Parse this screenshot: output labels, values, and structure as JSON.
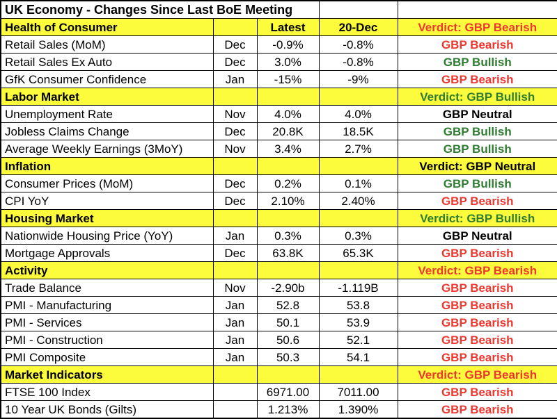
{
  "colors": {
    "section_bg": "#fcfc3d",
    "bearish": "#ed382f",
    "bullish": "#2e7d31",
    "neutral": "#000000"
  },
  "chart_data": {
    "type": "table",
    "title": "UK Economy - Changes Since Last BoE Meeting",
    "column_headers": {
      "latest": "Latest",
      "previous": "20-Dec"
    },
    "sections": [
      {
        "name": "Health of Consumer",
        "verdict": "Verdict: GBP Bearish",
        "tone": "bearish",
        "show_column_headers": true,
        "rows": [
          {
            "name": "Retail Sales (MoM)",
            "month": "Dec",
            "latest": "-0.9%",
            "previous": "-0.8%",
            "verdict": "GBP Bearish",
            "tone": "bearish"
          },
          {
            "name": "Retail Sales Ex Auto",
            "month": "Dec",
            "latest": "3.0%",
            "previous": "-0.8%",
            "verdict": "GBP Bullish",
            "tone": "bullish"
          },
          {
            "name": "GfK Consumer Confidence",
            "month": "Jan",
            "latest": "-15%",
            "previous": "-9%",
            "verdict": "GBP Bearish",
            "tone": "bearish"
          }
        ]
      },
      {
        "name": "Labor Market",
        "verdict": "Verdict: GBP Bullish",
        "tone": "bullish",
        "show_column_headers": false,
        "rows": [
          {
            "name": "Unemployment Rate",
            "month": "Nov",
            "latest": "4.0%",
            "previous": "4.0%",
            "verdict": "GBP Neutral",
            "tone": "neutral"
          },
          {
            "name": "Jobless Claims Change",
            "month": "Dec",
            "latest": "20.8K",
            "previous": "18.5K",
            "verdict": "GBP Bullish",
            "tone": "bullish"
          },
          {
            "name": "Average Weekly Earnings (3MoY)",
            "month": "Nov",
            "latest": "3.4%",
            "previous": "2.7%",
            "verdict": "GBP Bullish",
            "tone": "bullish"
          }
        ]
      },
      {
        "name": "Inflation",
        "verdict": "Verdict: GBP Neutral",
        "tone": "neutral",
        "show_column_headers": false,
        "rows": [
          {
            "name": "Consumer Prices (MoM)",
            "month": "Dec",
            "latest": "0.2%",
            "previous": "0.1%",
            "verdict": "GBP Bullish",
            "tone": "bullish"
          },
          {
            "name": "CPI YoY",
            "month": "Dec",
            "latest": "2.10%",
            "previous": "2.40%",
            "verdict": "GBP Bearish",
            "tone": "bearish"
          }
        ]
      },
      {
        "name": "Housing Market",
        "verdict": "Verdict: GBP Bullish",
        "tone": "bullish",
        "show_column_headers": false,
        "rows": [
          {
            "name": "Nationwide Housing Price (YoY)",
            "month": "Jan",
            "latest": "0.3%",
            "previous": "0.3%",
            "verdict": "GBP Neutral",
            "tone": "neutral"
          },
          {
            "name": "Mortgage Approvals",
            "month": "Dec",
            "latest": "63.8K",
            "previous": "65.3K",
            "verdict": "GBP Bearish",
            "tone": "bearish"
          }
        ]
      },
      {
        "name": "Activity",
        "verdict": "Verdict: GBP Bearish",
        "tone": "bearish",
        "show_column_headers": false,
        "rows": [
          {
            "name": "Trade Balance",
            "month": "Nov",
            "latest": "-2.90b",
            "previous": "-1.119B",
            "verdict": "GBP Bearish",
            "tone": "bearish"
          },
          {
            "name": "PMI - Manufacturing",
            "month": "Jan",
            "latest": "52.8",
            "previous": "53.8",
            "verdict": "GBP Bearish",
            "tone": "bearish"
          },
          {
            "name": "PMI - Services",
            "month": "Jan",
            "latest": "50.1",
            "previous": "53.9",
            "verdict": "GBP Bearish",
            "tone": "bearish"
          },
          {
            "name": "PMI - Construction",
            "month": "Jan",
            "latest": "50.6",
            "previous": "52.1",
            "verdict": "GBP Bearish",
            "tone": "bearish"
          },
          {
            "name": "PMI Composite",
            "month": "Jan",
            "latest": "50.3",
            "previous": "54.1",
            "verdict": "GBP Bearish",
            "tone": "bearish"
          }
        ]
      },
      {
        "name": "Market Indicators",
        "verdict": "Verdict: GBP Bearish",
        "tone": "bearish",
        "show_column_headers": false,
        "rows": [
          {
            "name": "FTSE 100 Index",
            "month": "",
            "latest": "6971.00",
            "previous": "7011.00",
            "verdict": "GBP Bearish",
            "tone": "bearish"
          },
          {
            "name": "10 Year UK Bonds (Gilts)",
            "month": "",
            "latest": "1.213%",
            "previous": "1.390%",
            "verdict": "GBP Bearish",
            "tone": "bearish"
          }
        ]
      }
    ]
  }
}
